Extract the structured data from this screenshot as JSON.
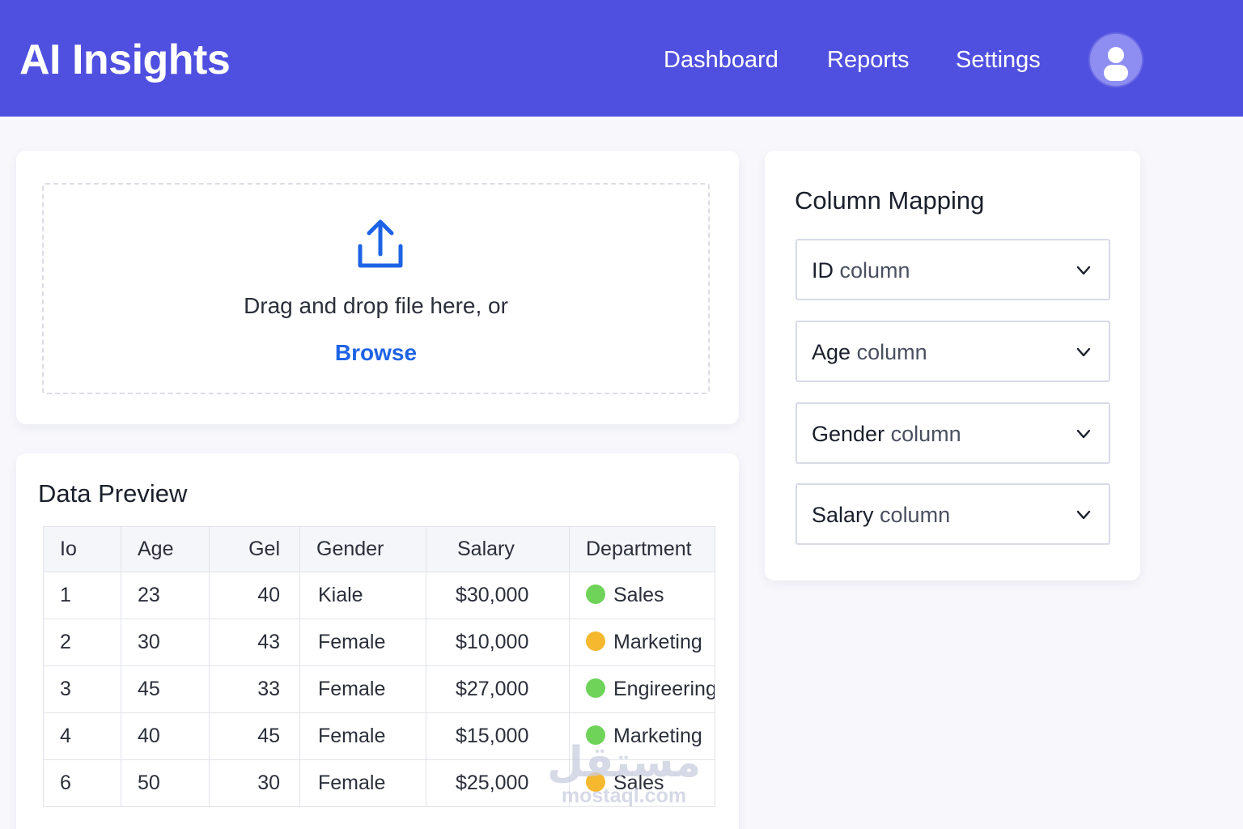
{
  "header": {
    "brand": "AI Insights",
    "nav": [
      {
        "label": "Dashboard"
      },
      {
        "label": "Reports"
      },
      {
        "label": "Settings"
      }
    ],
    "avatar_icon": "user-icon"
  },
  "upload": {
    "icon": "upload-icon",
    "prompt": "Drag and drop file here, or",
    "browse_label": "Browse",
    "accent_color": "#1e63e6"
  },
  "preview": {
    "title": "Data Preview",
    "columns": [
      "Io",
      "Age",
      "Gel",
      "Gender",
      "Salary",
      "Department"
    ],
    "rows": [
      {
        "id": "1",
        "age": "23",
        "gel": "40",
        "gender": "Kiale",
        "salary": "$30,000",
        "department": "Sales",
        "dot_color": "#6fd35a"
      },
      {
        "id": "2",
        "age": "30",
        "gel": "43",
        "gender": "Female",
        "salary": "$10,000",
        "department": "Marketing",
        "dot_color": "#f5b82e"
      },
      {
        "id": "3",
        "age": "45",
        "gel": "33",
        "gender": "Female",
        "salary": "$27,000",
        "department": "Engireering",
        "dot_color": "#6fd35a"
      },
      {
        "id": "4",
        "age": "40",
        "gel": "45",
        "gender": "Female",
        "salary": "$15,000",
        "department": "Marketing",
        "dot_color": "#6fd35a"
      },
      {
        "id": "6",
        "age": "50",
        "gel": "30",
        "gender": "Female",
        "salary": "$25,000",
        "department": "Sales",
        "dot_color": "#f5b82e"
      }
    ]
  },
  "mapping": {
    "title": "Column Mapping",
    "selects": [
      {
        "name": "ID",
        "suffix": "column"
      },
      {
        "name": "Age",
        "suffix": "column"
      },
      {
        "name": "Gender",
        "suffix": "column"
      },
      {
        "name": "Salary",
        "suffix": "column"
      }
    ]
  },
  "watermark": {
    "arabic": "مستقل",
    "latin": "mostaql.com"
  },
  "colors": {
    "header_bg": "#5050e0",
    "page_bg": "#f7f7fc",
    "dept_green": "#6fd35a",
    "dept_yellow": "#f5b82e"
  }
}
